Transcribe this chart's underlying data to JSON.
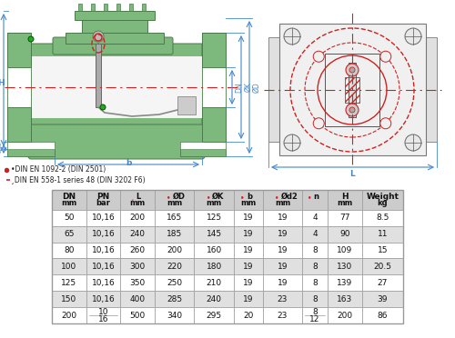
{
  "bg_color": "#ffffff",
  "green_body": "#7db87d",
  "green_dark": "#4a7a4a",
  "green_hatch": "#6aaa6a",
  "gray_inner": "#d0d0d0",
  "blue_dim": "#4488cc",
  "red_center": "#cc2222",
  "legend1": "•DIN EN 1092-2 (DIN 2501)",
  "legend2": "¸DIN EN 558-1 series 48 (DIN 3202 F6)",
  "table_headers_line1": [
    "DN",
    "PN",
    "¸L",
    "•ØD",
    "•ØK",
    "•b",
    "•Ød2",
    "•n",
    "H",
    "Weight"
  ],
  "table_headers_line2": [
    "mm",
    "bar",
    "mm",
    "mm",
    "mm",
    "mm",
    "mm",
    "",
    "mm",
    "kg"
  ],
  "table_data": [
    [
      "50",
      "10,16",
      "200",
      "165",
      "125",
      "19",
      "19",
      "4",
      "77",
      "8.5"
    ],
    [
      "65",
      "10,16",
      "240",
      "185",
      "145",
      "19",
      "19",
      "4",
      "90",
      "11"
    ],
    [
      "80",
      "10,16",
      "260",
      "200",
      "160",
      "19",
      "19",
      "8",
      "109",
      "15"
    ],
    [
      "100",
      "10,16",
      "300",
      "220",
      "180",
      "19",
      "19",
      "8",
      "130",
      "20.5"
    ],
    [
      "125",
      "10,16",
      "350",
      "250",
      "210",
      "19",
      "19",
      "8",
      "139",
      "27"
    ],
    [
      "150",
      "10,16",
      "400",
      "285",
      "240",
      "19",
      "23",
      "8",
      "163",
      "39"
    ],
    [
      "200",
      "10\n16",
      "500",
      "340",
      "295",
      "20",
      "23",
      "8\n12",
      "200",
      "86"
    ]
  ],
  "row_colors": [
    "#ffffff",
    "#e0e0e0",
    "#ffffff",
    "#e0e0e0",
    "#ffffff",
    "#e0e0e0",
    "#ffffff"
  ],
  "header_color": "#cccccc",
  "border_color": "#999999"
}
